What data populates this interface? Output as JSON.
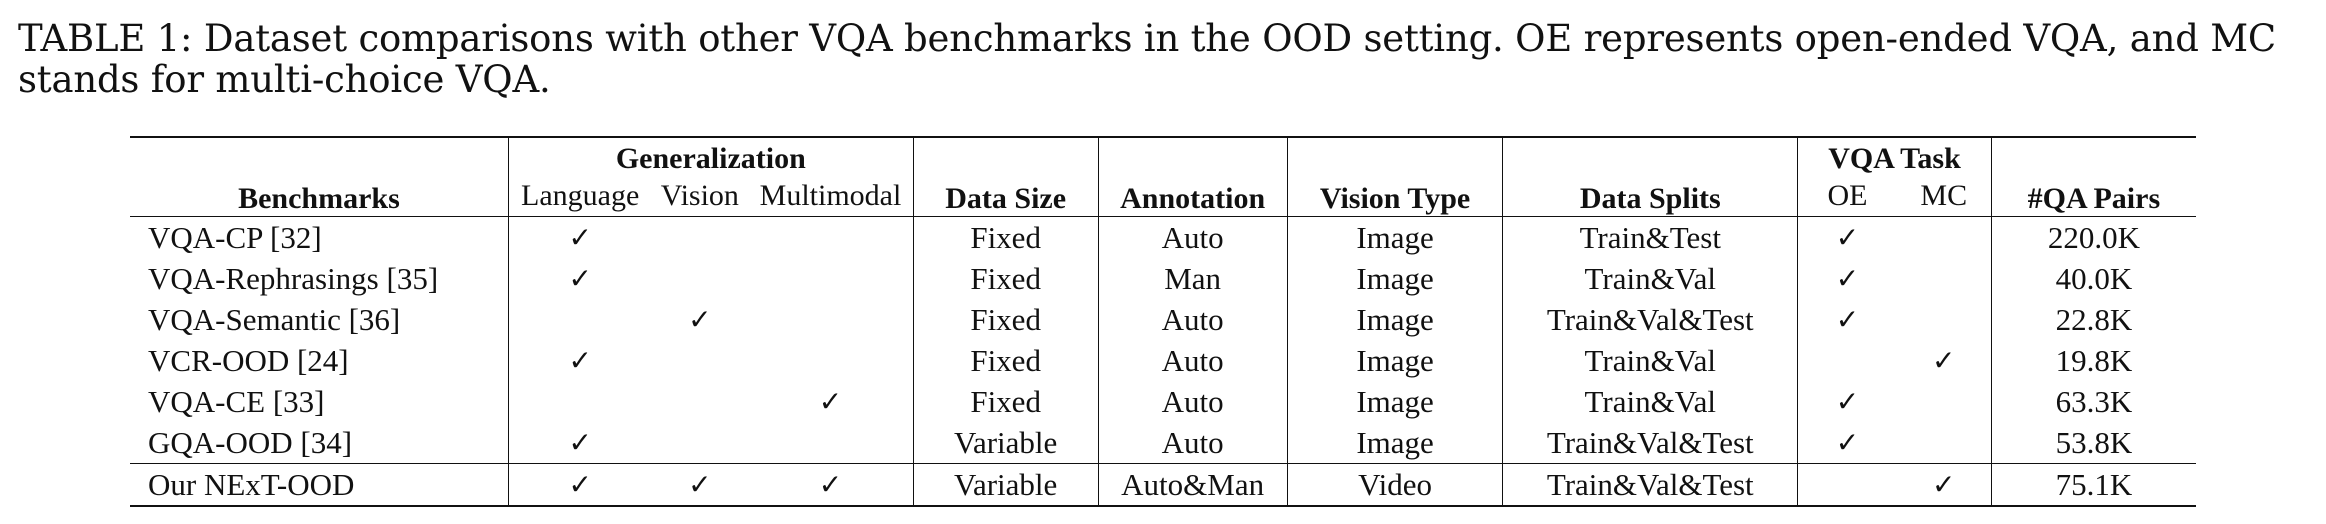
{
  "caption": "TABLE 1: Dataset comparisons with other VQA benchmarks in the OOD setting. OE represents open-ended VQA, and MC stands for multi-choice VQA.",
  "headers": {
    "benchmarks": "Benchmarks",
    "generalization": "Generalization",
    "language": "Language",
    "vision": "Vision",
    "multimodal": "Multimodal",
    "data_size": "Data Size",
    "annotation": "Annotation",
    "vision_type": "Vision Type",
    "data_splits": "Data Splits",
    "vqa_task": "VQA Task",
    "oe": "OE",
    "mc": "MC",
    "qa_pairs": "#QA Pairs"
  },
  "check_symbol": "✓",
  "rows": [
    {
      "name": "VQA-CP [32]",
      "language": true,
      "vision": false,
      "multimodal": false,
      "data_size": "Fixed",
      "annotation": "Auto",
      "vision_type": "Image",
      "data_splits": "Train&Test",
      "oe": true,
      "mc": false,
      "qa_pairs": "220.0K"
    },
    {
      "name": "VQA-Rephrasings [35]",
      "language": true,
      "vision": false,
      "multimodal": false,
      "data_size": "Fixed",
      "annotation": "Man",
      "vision_type": "Image",
      "data_splits": "Train&Val",
      "oe": true,
      "mc": false,
      "qa_pairs": "40.0K"
    },
    {
      "name": "VQA-Semantic [36]",
      "language": false,
      "vision": true,
      "multimodal": false,
      "data_size": "Fixed",
      "annotation": "Auto",
      "vision_type": "Image",
      "data_splits": "Train&Val&Test",
      "oe": true,
      "mc": false,
      "qa_pairs": "22.8K"
    },
    {
      "name": "VCR-OOD [24]",
      "language": true,
      "vision": false,
      "multimodal": false,
      "data_size": "Fixed",
      "annotation": "Auto",
      "vision_type": "Image",
      "data_splits": "Train&Val",
      "oe": false,
      "mc": true,
      "qa_pairs": "19.8K"
    },
    {
      "name": "VQA-CE [33]",
      "language": false,
      "vision": false,
      "multimodal": true,
      "data_size": "Fixed",
      "annotation": "Auto",
      "vision_type": "Image",
      "data_splits": "Train&Val",
      "oe": true,
      "mc": false,
      "qa_pairs": "63.3K"
    },
    {
      "name": "GQA-OOD [34]",
      "language": true,
      "vision": false,
      "multimodal": false,
      "data_size": "Variable",
      "annotation": "Auto",
      "vision_type": "Image",
      "data_splits": "Train&Val&Test",
      "oe": true,
      "mc": false,
      "qa_pairs": "53.8K"
    },
    {
      "name": "Our NExT-OOD",
      "language": true,
      "vision": true,
      "multimodal": true,
      "data_size": "Variable",
      "annotation": "Auto&Man",
      "vision_type": "Video",
      "data_splits": "Train&Val&Test",
      "oe": false,
      "mc": true,
      "qa_pairs": "75.1K"
    }
  ]
}
